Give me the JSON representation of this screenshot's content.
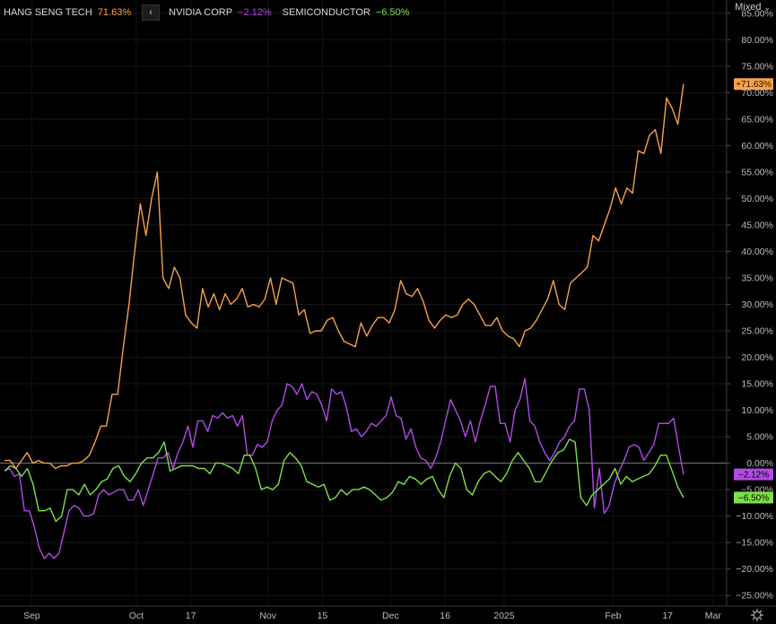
{
  "legend": [
    {
      "name": "HANG SENG TECH",
      "value": "71.63%",
      "color": "#f7a24a"
    },
    {
      "name": "NVIDIA CORP",
      "value": "−2.12%",
      "color": "#b14be6"
    },
    {
      "name": "SEMICONDUCTOR",
      "value": "−6.50%",
      "color": "#7fe04a"
    }
  ],
  "toolbar": {
    "collapse_icon": "chevron-left-icon",
    "scale_mode": "Mixed",
    "settings_icon": "gear-icon"
  },
  "chart_data": {
    "type": "line",
    "y_ticks": [
      85,
      80,
      75,
      70,
      65,
      60,
      55,
      50,
      45,
      40,
      35,
      30,
      25,
      20,
      15,
      10,
      5,
      0,
      -5,
      -10,
      -15,
      -20,
      -25
    ],
    "y_tick_labels": [
      "85.00%",
      "80.00%",
      "75.00%",
      "70.00%",
      "65.00%",
      "60.00%",
      "55.00%",
      "50.00%",
      "45.00%",
      "40.00%",
      "35.00%",
      "30.00%",
      "25.00%",
      "20.00%",
      "15.00%",
      "10.00%",
      "5.00%",
      "0.00%",
      "−5.00%",
      "−10.00%",
      "−15.00%",
      "−20.00%",
      "−25.00%"
    ],
    "ylim": [
      -27,
      87.5
    ],
    "x_ticks": [
      "Sep",
      "Oct",
      "17",
      "Nov",
      "15",
      "Dec",
      "16",
      "2025",
      "Feb",
      "17",
      "Mar"
    ],
    "x_tick_positions": [
      7,
      30,
      42,
      59,
      71,
      86,
      98,
      111,
      135,
      147,
      157
    ],
    "xlim": [
      0,
      160
    ],
    "series": [
      {
        "name": "HANG SENG TECH",
        "color": "#f7a24a",
        "last_label": "+71.63%",
        "values": [
          0.5,
          0.5,
          -1,
          0.5,
          2,
          0,
          0.5,
          0,
          0,
          -1,
          -0.5,
          -0.5,
          0,
          0,
          0.5,
          1.5,
          4,
          7,
          7,
          13,
          13,
          22,
          30,
          40,
          49,
          43,
          50,
          55,
          35,
          33,
          37,
          35,
          28,
          26.5,
          25.5,
          33,
          29.5,
          32,
          29,
          32,
          30,
          31,
          33,
          29.5,
          30,
          29.5,
          31,
          35,
          30,
          35,
          34.5,
          34,
          28,
          29,
          24.5,
          25,
          25,
          27,
          27.5,
          25,
          23,
          22.5,
          22,
          26.5,
          24,
          26,
          27.5,
          27.5,
          26.5,
          29,
          34.5,
          32,
          31.5,
          33,
          30.5,
          27,
          25.5,
          27,
          28,
          27.5,
          28,
          30,
          31,
          30,
          28,
          26,
          26,
          27.5,
          25,
          24,
          23.5,
          22,
          25,
          25.5,
          27,
          29,
          31,
          34.5,
          30,
          29,
          34,
          35,
          36,
          37,
          43,
          42,
          45,
          48,
          52,
          49,
          52,
          51,
          59,
          58.5,
          62,
          63,
          58.5,
          69,
          67,
          64,
          71.63
        ]
      },
      {
        "name": "NVIDIA CORP",
        "color": "#b14be6",
        "last_label": "−2.12%",
        "values": [
          -1.5,
          -1,
          -2.5,
          -2,
          -9,
          -9,
          -12,
          -16,
          -18,
          -17,
          -18,
          -17,
          -13,
          -9,
          -8,
          -8.5,
          -10,
          -10,
          -9.5,
          -6,
          -5,
          -6,
          -5.5,
          -5,
          -5,
          -7,
          -7,
          -5,
          -8,
          -5,
          -2,
          1,
          1,
          2,
          -1,
          2,
          4,
          7,
          3,
          8,
          8,
          6,
          9,
          8.5,
          9.5,
          8.5,
          9,
          7,
          9,
          1.5,
          1.5,
          3.5,
          3,
          4,
          8,
          10,
          11,
          15,
          14.5,
          13,
          15,
          12,
          13.5,
          13,
          11,
          8,
          14,
          13,
          13.5,
          10.5,
          6,
          6.5,
          5,
          6,
          7.5,
          7,
          8,
          9,
          12.5,
          9,
          8.5,
          4.5,
          6.5,
          3,
          1,
          0.5,
          -1,
          1,
          4,
          8,
          12,
          10,
          8,
          5,
          8,
          4,
          8,
          11,
          14.5,
          14.5,
          7.5,
          7.5,
          4,
          10,
          12,
          16,
          8,
          7,
          4,
          2,
          0.5,
          2,
          4,
          5,
          7,
          8,
          14,
          14,
          10,
          -8.5,
          -1,
          -9.5,
          -8,
          -4,
          -1.5,
          0.5,
          3,
          3.5,
          3,
          0.5,
          2,
          3.5,
          7.5,
          7.5,
          7.5,
          8.5,
          3,
          -2.12
        ]
      },
      {
        "name": "SEMICONDUCTOR",
        "color": "#7fe04a",
        "last_label": "−6.50%",
        "values": [
          -1.5,
          -0.5,
          -1,
          -2.5,
          -1,
          -4,
          -9,
          -9,
          -8.5,
          -11,
          -10,
          -5,
          -5,
          -6,
          -4,
          -6,
          -5,
          -3.5,
          -3,
          -1,
          -0.5,
          -2.5,
          -3.5,
          -2,
          0,
          1,
          1,
          2,
          4,
          -1.5,
          -1,
          -0.5,
          -0.5,
          -0.5,
          -1,
          -1,
          -2,
          0,
          0,
          -0.5,
          -1,
          -2,
          1.5,
          1.5,
          -1,
          -5,
          -4.5,
          -5,
          -4,
          0.5,
          2,
          1,
          -0.5,
          -3.5,
          -4,
          -4.5,
          -4,
          -7,
          -6.5,
          -5,
          -6,
          -5,
          -5,
          -4.5,
          -5,
          -6,
          -7,
          -6.5,
          -5.5,
          -3.5,
          -4,
          -2.5,
          -3,
          -4,
          -3,
          -2.5,
          -5,
          -6.5,
          -2.5,
          0,
          -1,
          -5,
          -6,
          -3.5,
          -2,
          -1.5,
          -2.5,
          -3.5,
          -2,
          0.5,
          2,
          0.5,
          -1,
          -3.5,
          -3.5,
          -1.5,
          0.5,
          2,
          2.5,
          4.5,
          4,
          -6.5,
          -8,
          -6,
          -5,
          -4,
          -3,
          -1,
          -4,
          -2.5,
          -3.5,
          -3,
          -2.5,
          -2,
          -0.5,
          1.5,
          1.5,
          -1.5,
          -4.5,
          -6.5
        ]
      }
    ]
  }
}
